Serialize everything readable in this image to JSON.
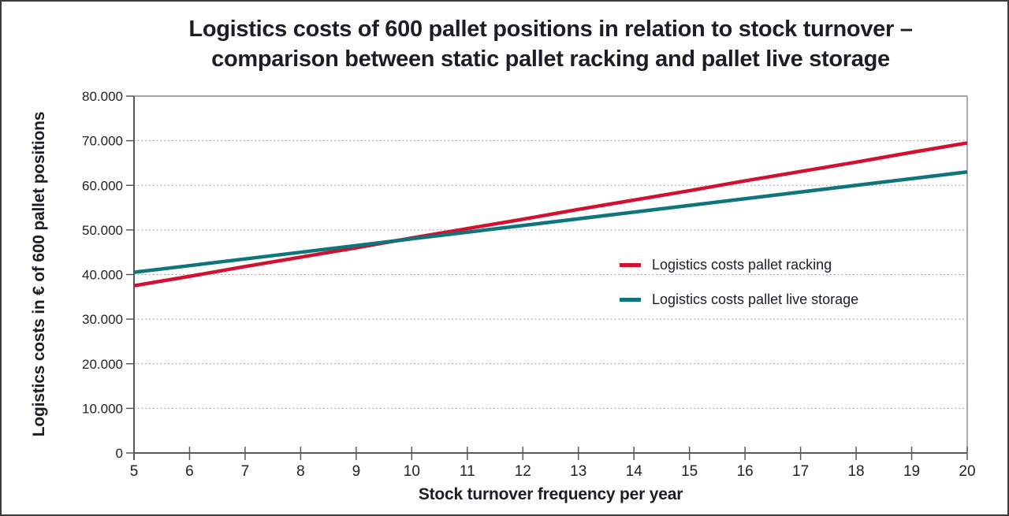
{
  "page": {
    "background": "#ffffff",
    "border_color": "#3a3a3e"
  },
  "chart_data": {
    "type": "line",
    "title": "Logistics costs of 600 pallet positions in relation to stock turnover – comparison between static pallet racking and pallet live storage",
    "title_lines": [
      "Logistics costs of 600 pallet positions in relation to stock turnover –",
      "comparison between static pallet racking and pallet live storage"
    ],
    "xlabel": "Stock turnover frequency per year",
    "ylabel": "Logistics costs in € of 600 pallet positions",
    "x": [
      5,
      6,
      7,
      8,
      9,
      10,
      11,
      12,
      13,
      14,
      15,
      16,
      17,
      18,
      19,
      20
    ],
    "x_tick_labels": [
      "5",
      "6",
      "7",
      "8",
      "9",
      "10",
      "11",
      "12",
      "13",
      "14",
      "15",
      "16",
      "17",
      "18",
      "19",
      "20"
    ],
    "y_ticks": [
      0,
      10000,
      20000,
      30000,
      40000,
      50000,
      60000,
      70000,
      80000
    ],
    "y_tick_labels": [
      "0",
      "10.000",
      "20.000",
      "30.000",
      "40.000",
      "50.000",
      "60.000",
      "70.000",
      "80.000"
    ],
    "xlim": [
      5,
      20
    ],
    "ylim": [
      0,
      80000
    ],
    "grid": "horizontal-dotted",
    "legend_position": "inside-right",
    "series": [
      {
        "name": "Logistics costs pallet racking",
        "color": "#d2102f",
        "values": [
          37500,
          39600,
          41800,
          43900,
          46000,
          48200,
          50300,
          52400,
          54600,
          56700,
          58800,
          61000,
          63100,
          65200,
          67400,
          69500
        ]
      },
      {
        "name": "Logistics costs pallet live storage",
        "color": "#0e757d",
        "values": [
          40500,
          42000,
          43500,
          45000,
          46500,
          48000,
          49500,
          51000,
          52500,
          54000,
          55500,
          57000,
          58500,
          60000,
          61500,
          63000
        ]
      }
    ],
    "style": {
      "text_color": "#222228",
      "axis_color": "#58585a",
      "grid_color": "#8e8e8e",
      "plot_border_color": "#8a8a8a",
      "line_width": 4.5
    }
  }
}
